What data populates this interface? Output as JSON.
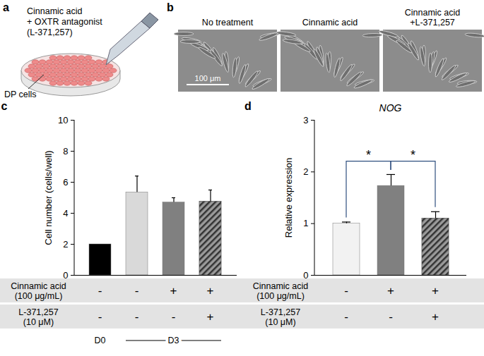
{
  "panels": {
    "a": {
      "panel_label": "a",
      "text": [
        "Cinnamic acid",
        "+ OXTR antagonist",
        "(L-371,257)"
      ],
      "cells_label": "DP cells"
    },
    "b": {
      "panel_label": "b",
      "images": [
        [
          "No treatment"
        ],
        [
          "Cinnamic acid"
        ],
        [
          "Cinnamic acid",
          "+L-371,257"
        ]
      ],
      "scale_bar": "100 μm"
    }
  },
  "chart_data": [
    {
      "type": "bar",
      "panel_label": "c",
      "categories": [
        null,
        null,
        null,
        null
      ],
      "values": [
        2,
        5.35,
        4.7,
        4.75
      ],
      "errors": [
        null,
        1.05,
        0.3,
        0.75
      ],
      "colors": [
        "#000000",
        "#d9d9d9",
        "#808080",
        "#808080"
      ],
      "ylabel": "Cell number (cells/well)",
      "ylim": [
        0,
        10
      ],
      "yticks": [
        0,
        2,
        4,
        6,
        8,
        10
      ],
      "tick_labels": "y",
      "conditions": [
        {
          "label": [
            "Cinnamic acid",
            "(100 μg/mL)"
          ],
          "values": [
            "-",
            "-",
            "+",
            "+"
          ]
        },
        {
          "label": [
            "L-371,257",
            "(10 μM)"
          ],
          "values": [
            "-",
            "-",
            "-",
            "+"
          ]
        }
      ],
      "groups": [
        {
          "label": "D0",
          "from": 0,
          "to": 0
        },
        {
          "label": "D3",
          "from": 1,
          "to": 3
        }
      ]
    },
    {
      "type": "bar",
      "panel_label": "d",
      "title": "NOG",
      "categories": [
        null,
        null,
        null
      ],
      "values": [
        1,
        1.73,
        1.1
      ],
      "errors": [
        0.03,
        0.22,
        0.13
      ],
      "colors": [
        "#f2f2f2",
        "#808080",
        "#808080"
      ],
      "ylabel": "Relative expression",
      "ylim": [
        0,
        3
      ],
      "yticks": [
        0,
        1,
        2,
        3
      ],
      "tick_labels": "y",
      "conditions": [
        {
          "label": [
            "Cinnamic acid",
            "(100 μg/mL)"
          ],
          "values": [
            "-",
            "+",
            "+"
          ]
        },
        {
          "label": [
            "L-371,257",
            "(10 μM)"
          ],
          "values": [
            "-",
            "-",
            "+"
          ]
        }
      ],
      "significance": [
        {
          "from": 0,
          "to": 1,
          "y": 2.2,
          "label": "*"
        },
        {
          "from": 1,
          "to": 2,
          "y": 2.2,
          "label": "*"
        }
      ]
    }
  ]
}
